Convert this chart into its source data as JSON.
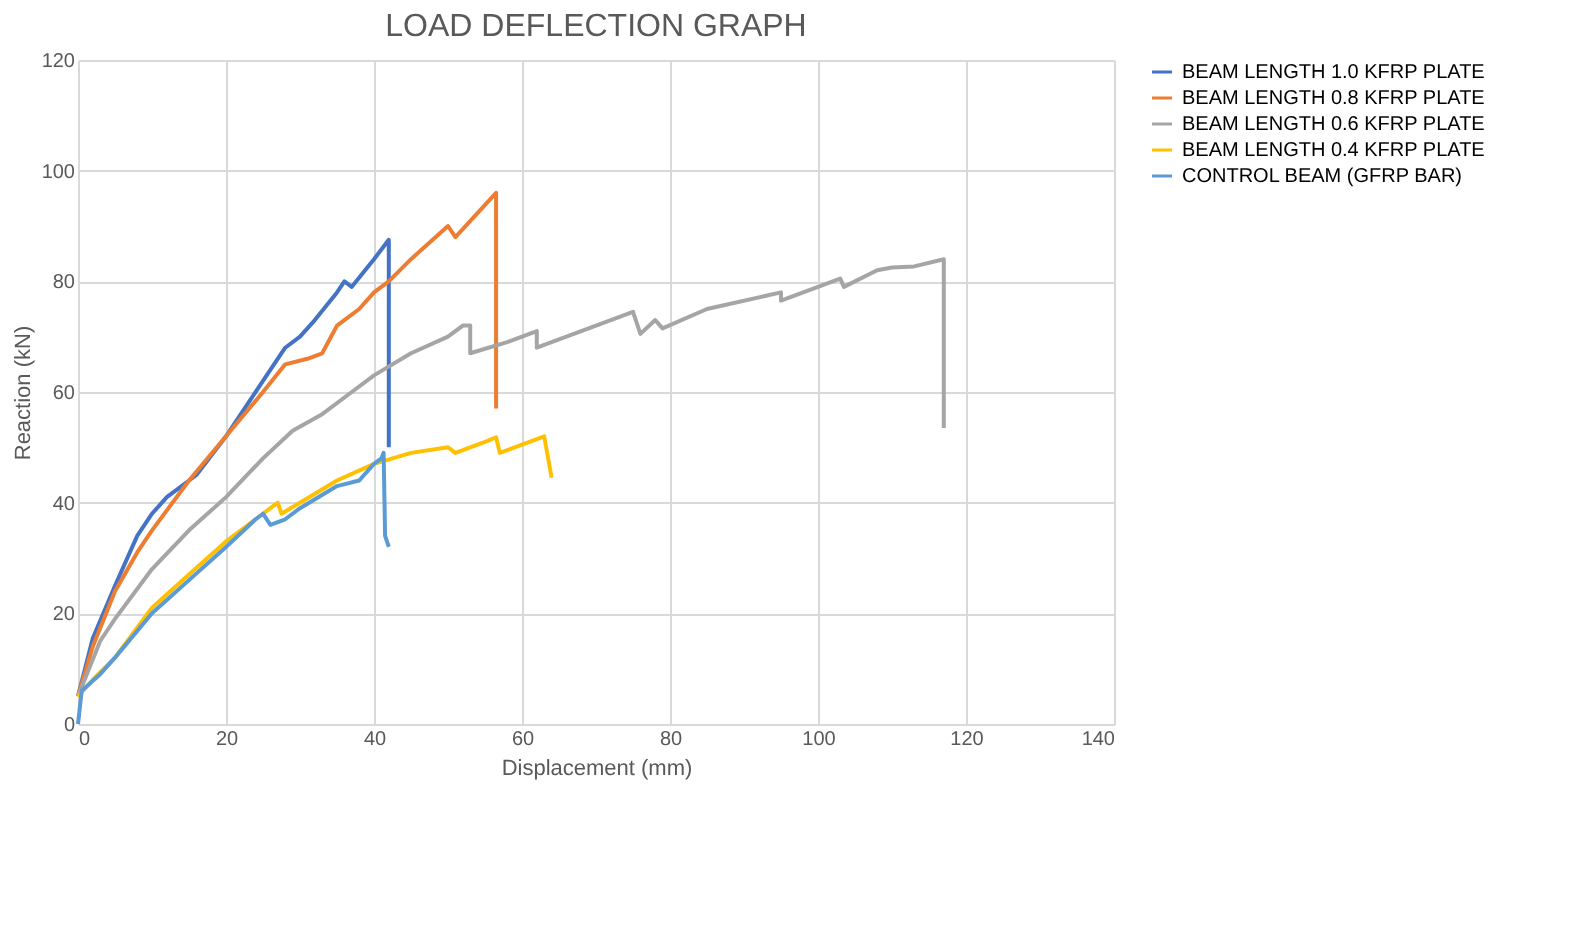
{
  "chart_data": {
    "type": "line",
    "title": "LOAD DEFLECTION GRAPH",
    "xlabel": "Displacement (mm)",
    "ylabel": "Reaction (kN)",
    "xlim": [
      0,
      140
    ],
    "xticks": [
      0,
      20,
      40,
      60,
      80,
      100,
      120,
      140
    ],
    "ylim": [
      0,
      120
    ],
    "yticks": [
      0,
      20,
      40,
      60,
      80,
      100,
      120
    ],
    "grid": true,
    "legend": "right",
    "marker": "none",
    "line_style": "solid",
    "series": [
      {
        "name": "BEAM LENGTH 1.0 KFRP PLATE",
        "color": "#4472c4",
        "x": [
          0,
          2,
          5,
          8,
          10,
          12,
          14,
          16,
          20,
          25,
          28,
          30,
          32,
          35,
          36,
          37,
          40,
          42,
          42
        ],
        "values": [
          5,
          15.5,
          25,
          34,
          38,
          41,
          43,
          45,
          52,
          62,
          68,
          70,
          73,
          78,
          80,
          79,
          84,
          87.5,
          50
        ]
      },
      {
        "name": "BEAM LENGTH 0.8 KFRP PLATE",
        "color": "#ed7d31",
        "x": [
          0,
          2,
          5,
          8,
          10,
          15,
          20,
          25,
          28,
          31,
          33,
          35,
          38,
          40,
          42,
          45,
          50,
          51,
          56.5,
          56.5
        ],
        "values": [
          5,
          14,
          24,
          31,
          35,
          44,
          52,
          60,
          65,
          66,
          67,
          72,
          75,
          78,
          80,
          84,
          90,
          88,
          96,
          57
        ]
      },
      {
        "name": "BEAM LENGTH 0.6 KFRP PLATE",
        "color": "#a5a5a5",
        "x": [
          0,
          3,
          5,
          10,
          15,
          20,
          25,
          29,
          33,
          37,
          40,
          45,
          50,
          52,
          53,
          53,
          58,
          62,
          62,
          68,
          75,
          76,
          78,
          79,
          85,
          95,
          95,
          103,
          103.5,
          108,
          110,
          113,
          117,
          117
        ],
        "values": [
          5,
          15,
          19,
          28,
          35,
          41,
          48,
          53,
          56,
          60,
          63,
          67,
          70,
          72,
          72,
          67,
          69,
          71,
          68,
          71,
          74.5,
          70.5,
          73,
          71.5,
          75,
          78,
          76.5,
          80.5,
          79,
          82,
          82.5,
          82.7,
          84,
          53.5
        ]
      },
      {
        "name": "BEAM LENGTH 0.4 KFRP PLATE",
        "color": "#ffc000",
        "x": [
          0,
          2,
          5,
          10,
          15,
          20,
          24,
          27,
          27.5,
          30,
          35,
          40,
          45,
          50,
          51,
          55,
          56.5,
          57,
          63,
          64
        ],
        "values": [
          5,
          8,
          12,
          21,
          27,
          33,
          37,
          40,
          38,
          40,
          44,
          47,
          49,
          50,
          49,
          51,
          51.8,
          49,
          52,
          44.5
        ]
      },
      {
        "name": "CONTROL BEAM (GFRP BAR)",
        "color": "#5b9bd5",
        "x": [
          0,
          0.5,
          3,
          5,
          10,
          15,
          20,
          24,
          25,
          26,
          28,
          30,
          35,
          38,
          40,
          41,
          41.3,
          41.5,
          42
        ],
        "values": [
          0,
          6,
          9,
          12,
          20,
          26,
          32,
          37,
          38,
          36,
          37,
          39,
          43,
          44,
          47,
          48,
          49,
          34,
          32
        ]
      }
    ]
  }
}
